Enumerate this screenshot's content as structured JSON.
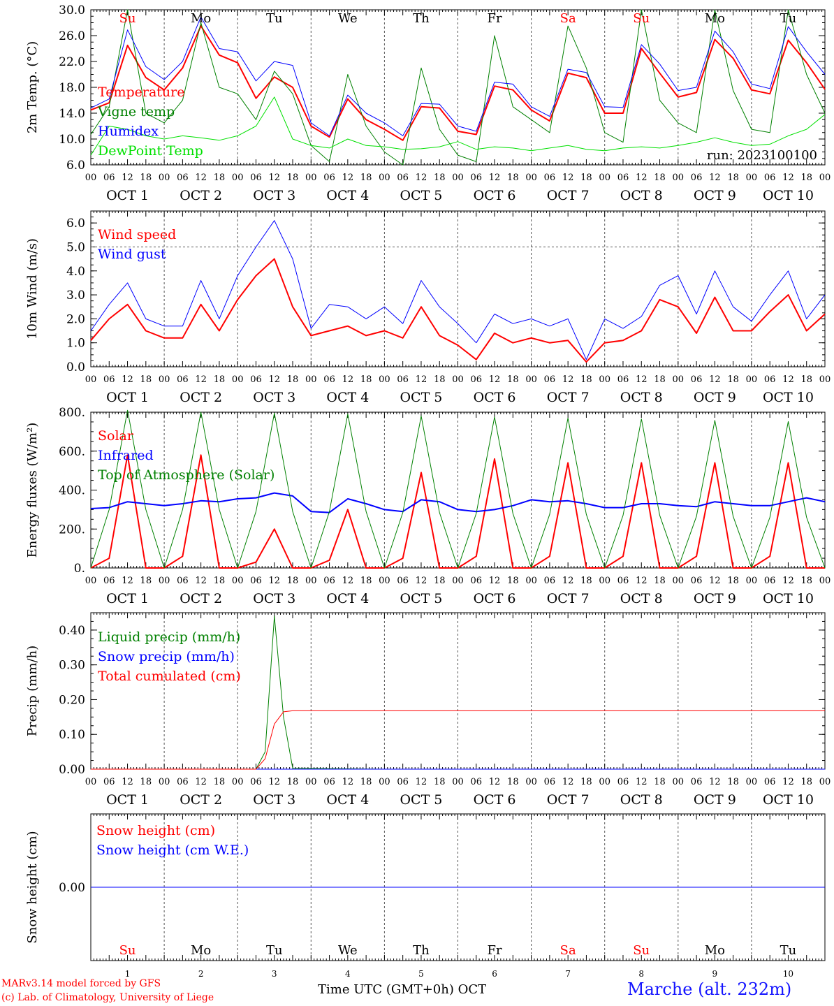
{
  "days": [
    {
      "dow": "Su",
      "date": "OCT  1",
      "num": "1",
      "dowColor": "#ff0000"
    },
    {
      "dow": "Mo",
      "date": "OCT  2",
      "num": "2",
      "dowColor": "#000000"
    },
    {
      "dow": "Tu",
      "date": "OCT  3",
      "num": "3",
      "dowColor": "#000000"
    },
    {
      "dow": "We",
      "date": "OCT  4",
      "num": "4",
      "dowColor": "#000000"
    },
    {
      "dow": "Th",
      "date": "OCT  5",
      "num": "5",
      "dowColor": "#000000"
    },
    {
      "dow": "Fr",
      "date": "OCT  6",
      "num": "6",
      "dowColor": "#000000"
    },
    {
      "dow": "Sa",
      "date": "OCT  7",
      "num": "7",
      "dowColor": "#ff0000"
    },
    {
      "dow": "Su",
      "date": "OCT  8",
      "num": "8",
      "dowColor": "#ff0000"
    },
    {
      "dow": "Mo",
      "date": "OCT  9",
      "num": "9",
      "dowColor": "#000000"
    },
    {
      "dow": "Tu",
      "date": "OCT 10",
      "num": "10",
      "dowColor": "#000000"
    }
  ],
  "hour_labels": [
    "00",
    "06",
    "12",
    "18"
  ],
  "end_hour_label": "00",
  "footer": {
    "credit_line1": "MARv3.14 model forced by GFS",
    "credit_line2": "(c) Lab. of Climatology, University of Liege",
    "xaxis_title": "Time UTC (GMT+0h) OCT",
    "station": "Marche (alt. 232m)"
  },
  "chart_data": [
    {
      "type": "line",
      "ylabel": "2m Temp. (°C)",
      "ylim": [
        6.0,
        30.0
      ],
      "yticks": [
        "6.0",
        "10.0",
        "14.0",
        "18.0",
        "22.0",
        "26.0",
        "30.0"
      ],
      "annotation": "run: 2023100100",
      "x_hours": [
        0,
        6,
        12,
        18,
        24,
        30,
        36,
        42,
        48,
        54,
        60,
        66,
        72,
        78,
        84,
        90,
        96,
        102,
        108,
        114,
        120,
        126,
        132,
        138,
        144,
        150,
        156,
        162,
        168,
        174,
        180,
        186,
        192,
        198,
        204,
        210,
        216,
        222,
        228,
        234,
        240
      ],
      "series": [
        {
          "name": "Temperature",
          "color": "#ff0000",
          "width": 2,
          "values": [
            14.5,
            15.6,
            24.5,
            19.5,
            17.6,
            21.0,
            27.5,
            23.0,
            21.8,
            16.3,
            19.6,
            18.0,
            12.0,
            10.3,
            16.2,
            13.0,
            11.5,
            9.8,
            15.0,
            14.8,
            11.2,
            10.7,
            18.2,
            17.6,
            14.5,
            12.8,
            20.2,
            19.5,
            14.0,
            14.0,
            24.0,
            20.2,
            16.5,
            17.2,
            25.4,
            22.5,
            17.6,
            17.0,
            25.3,
            21.8,
            17.7
          ]
        },
        {
          "name": "Vigne temp",
          "color": "#008000",
          "width": 1,
          "values": [
            10.7,
            15.0,
            30.0,
            14.0,
            12.5,
            16.0,
            28.0,
            18.0,
            17.0,
            13.0,
            20.5,
            17.0,
            9.0,
            6.5,
            20.0,
            12.0,
            8.0,
            6.0,
            21.0,
            11.5,
            7.5,
            6.5,
            26.0,
            15.0,
            13.0,
            11.0,
            27.5,
            21.0,
            11.0,
            9.5,
            30.0,
            16.0,
            12.5,
            11.0,
            30.0,
            17.5,
            11.5,
            11.0,
            30.0,
            20.0,
            14.0
          ]
        },
        {
          "name": "Humidex",
          "color": "#0000ff",
          "width": 1,
          "values": [
            14.8,
            16.2,
            26.9,
            21.2,
            19.2,
            22.0,
            28.9,
            24.0,
            23.5,
            19.0,
            22.0,
            21.4,
            12.5,
            10.5,
            16.8,
            14.0,
            12.5,
            10.5,
            15.5,
            15.4,
            12.0,
            11.2,
            18.8,
            18.5,
            15.0,
            13.5,
            20.8,
            20.3,
            15.0,
            14.9,
            24.6,
            21.6,
            17.5,
            18.0,
            26.7,
            23.5,
            18.5,
            17.8,
            27.4,
            23.5,
            20.0
          ]
        },
        {
          "name": "DewPoint Temp",
          "color": "#00e000",
          "width": 1,
          "values": [
            7.5,
            12.0,
            11.5,
            10.5,
            10.0,
            10.5,
            10.2,
            9.8,
            10.5,
            12.0,
            16.5,
            10.0,
            9.0,
            8.6,
            10.0,
            9.0,
            8.8,
            8.4,
            8.5,
            8.8,
            9.6,
            8.4,
            8.8,
            8.6,
            8.2,
            8.6,
            9.0,
            8.4,
            8.2,
            8.6,
            8.8,
            8.6,
            9.0,
            9.5,
            10.2,
            9.5,
            9.0,
            9.2,
            10.5,
            11.5,
            13.8
          ]
        }
      ]
    },
    {
      "type": "line",
      "ylabel": "10m Wind (m/s)",
      "ylim": [
        0.0,
        6.5
      ],
      "yticks": [
        "0.0",
        "1.0",
        "2.0",
        "3.0",
        "4.0",
        "5.0",
        "6.0"
      ],
      "refline": 5.0,
      "x_hours": [
        0,
        6,
        12,
        18,
        24,
        30,
        36,
        42,
        48,
        54,
        60,
        66,
        72,
        78,
        84,
        90,
        96,
        102,
        108,
        114,
        120,
        126,
        132,
        138,
        144,
        150,
        156,
        162,
        168,
        174,
        180,
        186,
        192,
        198,
        204,
        210,
        216,
        222,
        228,
        234,
        240
      ],
      "series": [
        {
          "name": "Wind speed",
          "color": "#ff0000",
          "width": 2,
          "values": [
            1.1,
            2.0,
            2.6,
            1.5,
            1.2,
            1.2,
            2.6,
            1.5,
            2.8,
            3.8,
            4.5,
            2.5,
            1.3,
            1.5,
            1.7,
            1.3,
            1.5,
            1.2,
            2.5,
            1.3,
            0.9,
            0.3,
            1.4,
            1.0,
            1.2,
            1.0,
            1.1,
            0.2,
            1.0,
            1.1,
            1.5,
            2.8,
            2.5,
            1.4,
            2.9,
            1.5,
            1.5,
            2.3,
            3.0,
            1.5,
            2.2
          ]
        },
        {
          "name": "Wind gust",
          "color": "#0000ff",
          "width": 1,
          "values": [
            1.5,
            2.6,
            3.5,
            2.0,
            1.7,
            1.7,
            3.6,
            2.0,
            3.8,
            5.0,
            6.1,
            4.5,
            1.6,
            2.6,
            2.5,
            2.0,
            2.5,
            1.8,
            3.6,
            2.5,
            1.8,
            1.0,
            2.2,
            1.8,
            2.0,
            1.7,
            2.0,
            0.3,
            2.0,
            1.6,
            2.1,
            3.4,
            3.8,
            2.2,
            4.0,
            2.5,
            1.9,
            3.0,
            4.0,
            2.0,
            3.0
          ]
        }
      ]
    },
    {
      "type": "line",
      "ylabel": "Energy fluxes (W/m²)",
      "ylim": [
        0,
        800
      ],
      "yticks": [
        "0.",
        "200.",
        "400.",
        "600.",
        "800."
      ],
      "x_hours": [
        0,
        6,
        12,
        18,
        24,
        30,
        36,
        42,
        48,
        54,
        60,
        66,
        72,
        78,
        84,
        90,
        96,
        102,
        108,
        114,
        120,
        126,
        132,
        138,
        144,
        150,
        156,
        162,
        168,
        174,
        180,
        186,
        192,
        198,
        204,
        210,
        216,
        222,
        228,
        234,
        240
      ],
      "series": [
        {
          "name": "Solar",
          "color": "#ff0000",
          "width": 2,
          "values": [
            0,
            50,
            580,
            0,
            0,
            60,
            580,
            0,
            0,
            30,
            200,
            0,
            0,
            40,
            300,
            0,
            0,
            50,
            490,
            0,
            0,
            60,
            560,
            0,
            0,
            60,
            540,
            0,
            0,
            60,
            540,
            0,
            0,
            60,
            540,
            0,
            0,
            60,
            540,
            0,
            0
          ]
        },
        {
          "name": "Infrared",
          "color": "#0000ff",
          "width": 2,
          "values": [
            305,
            310,
            340,
            330,
            320,
            330,
            345,
            340,
            355,
            360,
            385,
            370,
            290,
            285,
            355,
            330,
            300,
            290,
            350,
            340,
            300,
            290,
            300,
            320,
            350,
            340,
            345,
            330,
            310,
            310,
            330,
            330,
            320,
            315,
            340,
            330,
            320,
            320,
            340,
            360,
            340
          ]
        },
        {
          "name": "Top of Atmosphere (Solar)",
          "color": "#008000",
          "width": 1,
          "values": [
            0,
            300,
            810,
            300,
            0,
            300,
            800,
            300,
            0,
            290,
            795,
            290,
            0,
            290,
            790,
            290,
            0,
            285,
            780,
            285,
            0,
            280,
            775,
            280,
            0,
            275,
            770,
            275,
            0,
            270,
            765,
            270,
            0,
            265,
            758,
            265,
            0,
            260,
            752,
            260,
            0
          ]
        }
      ]
    },
    {
      "type": "line",
      "ylabel": "Precip (mm/h)",
      "ylim": [
        0.0,
        0.45
      ],
      "yticks": [
        "0.00",
        "0.10",
        "0.20",
        "0.30",
        "0.40"
      ],
      "x_hours": [
        0,
        6,
        12,
        18,
        24,
        30,
        36,
        42,
        48,
        54,
        57,
        60,
        63,
        66,
        72,
        84,
        96,
        120,
        144,
        168,
        192,
        216,
        240
      ],
      "series": [
        {
          "name": "Liquid precip (mm/h)",
          "color": "#008000",
          "width": 1,
          "values": [
            0,
            0,
            0,
            0,
            0,
            0,
            0,
            0,
            0,
            0,
            0.05,
            0.44,
            0.15,
            0.003,
            0.002,
            0.001,
            0,
            0,
            0,
            0,
            0,
            0,
            0
          ]
        },
        {
          "name": "Snow precip (mm/h)",
          "color": "#0000ff",
          "width": 1,
          "values": [
            0,
            0,
            0,
            0,
            0,
            0,
            0,
            0,
            0,
            0,
            0,
            0,
            0,
            0,
            0,
            0,
            0,
            0,
            0,
            0,
            0,
            0,
            0
          ]
        },
        {
          "name": "Total cumulated (cm)",
          "color": "#ff0000",
          "width": 1,
          "values": [
            0,
            0,
            0,
            0,
            0,
            0,
            0,
            0,
            0,
            0,
            0.03,
            0.13,
            0.165,
            0.168,
            0.168,
            0.168,
            0.168,
            0.168,
            0.168,
            0.168,
            0.168,
            0.168,
            0.168
          ]
        }
      ]
    },
    {
      "type": "line",
      "ylabel": "Snow height (cm)",
      "ylim": [
        -1,
        1
      ],
      "yticks": [
        "0.00"
      ],
      "x_hours": [
        0,
        240
      ],
      "series": [
        {
          "name": "Snow height (cm)",
          "color": "#ff0000",
          "width": 1,
          "values": [
            0,
            0
          ]
        },
        {
          "name": "Snow height (cm W.E.)",
          "color": "#0000ff",
          "width": 1,
          "values": [
            0,
            0
          ]
        }
      ]
    }
  ]
}
